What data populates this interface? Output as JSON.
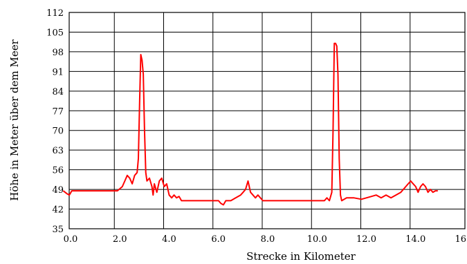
{
  "chart_data": {
    "type": "line",
    "xlabel": "Strecke in Kilometer",
    "ylabel": "Höhe in Meter über dem Meer",
    "xlim": [
      0.0,
      16.0
    ],
    "ylim": [
      35,
      112
    ],
    "x_ticks": [
      "0.0",
      "2.0",
      "4.0",
      "6.0",
      "8.0",
      "10.0",
      "12.0",
      "14.0",
      "16.0"
    ],
    "y_ticks": [
      "112",
      "105",
      "98",
      "91",
      "84",
      "77",
      "70",
      "63",
      "56",
      "49",
      "42",
      "35"
    ],
    "grid": true,
    "series_color": "#ff0000",
    "series": [
      {
        "points": [
          [
            -0.3,
            48.5
          ],
          [
            -0.15,
            47.5
          ],
          [
            -0.05,
            47
          ],
          [
            0.05,
            48.5
          ],
          [
            0.5,
            48.5
          ],
          [
            1.0,
            48.5
          ],
          [
            1.5,
            48.5
          ],
          [
            1.9,
            48.5
          ],
          [
            2.1,
            50
          ],
          [
            2.2,
            52
          ],
          [
            2.3,
            54
          ],
          [
            2.4,
            53
          ],
          [
            2.5,
            51
          ],
          [
            2.6,
            54
          ],
          [
            2.7,
            55
          ],
          [
            2.75,
            60
          ],
          [
            2.8,
            80
          ],
          [
            2.85,
            97
          ],
          [
            2.9,
            95
          ],
          [
            2.95,
            90
          ],
          [
            3.0,
            70
          ],
          [
            3.05,
            55
          ],
          [
            3.1,
            52
          ],
          [
            3.2,
            53
          ],
          [
            3.3,
            50
          ],
          [
            3.35,
            47
          ],
          [
            3.4,
            51
          ],
          [
            3.5,
            48
          ],
          [
            3.6,
            52
          ],
          [
            3.7,
            53
          ],
          [
            3.8,
            50
          ],
          [
            3.9,
            51
          ],
          [
            4.0,
            47
          ],
          [
            4.1,
            46
          ],
          [
            4.2,
            47
          ],
          [
            4.3,
            46
          ],
          [
            4.4,
            46.5
          ],
          [
            4.5,
            45
          ],
          [
            4.7,
            45
          ],
          [
            5.0,
            45
          ],
          [
            5.5,
            45
          ],
          [
            6.0,
            45
          ],
          [
            6.1,
            44
          ],
          [
            6.2,
            43.5
          ],
          [
            6.3,
            45
          ],
          [
            6.5,
            45
          ],
          [
            6.7,
            46
          ],
          [
            6.9,
            47
          ],
          [
            7.0,
            48
          ],
          [
            7.1,
            49
          ],
          [
            7.2,
            52
          ],
          [
            7.3,
            48
          ],
          [
            7.4,
            47
          ],
          [
            7.5,
            46
          ],
          [
            7.6,
            47
          ],
          [
            7.8,
            45
          ],
          [
            8.0,
            45
          ],
          [
            8.5,
            45
          ],
          [
            9.0,
            45
          ],
          [
            9.5,
            45
          ],
          [
            10.0,
            45
          ],
          [
            10.3,
            45
          ],
          [
            10.4,
            46
          ],
          [
            10.5,
            45
          ],
          [
            10.6,
            48
          ],
          [
            10.65,
            70
          ],
          [
            10.7,
            101
          ],
          [
            10.75,
            101
          ],
          [
            10.8,
            100
          ],
          [
            10.85,
            90
          ],
          [
            10.9,
            60
          ],
          [
            10.95,
            47
          ],
          [
            11.0,
            45
          ],
          [
            11.2,
            46
          ],
          [
            11.5,
            46
          ],
          [
            11.8,
            45.5
          ],
          [
            12.0,
            46
          ],
          [
            12.2,
            46.5
          ],
          [
            12.4,
            47
          ],
          [
            12.6,
            46
          ],
          [
            12.8,
            47
          ],
          [
            13.0,
            46
          ],
          [
            13.2,
            47
          ],
          [
            13.4,
            48
          ],
          [
            13.6,
            50
          ],
          [
            13.8,
            52
          ],
          [
            14.0,
            50
          ],
          [
            14.1,
            48
          ],
          [
            14.2,
            50
          ],
          [
            14.3,
            51
          ],
          [
            14.4,
            50
          ],
          [
            14.5,
            48
          ],
          [
            14.6,
            49
          ],
          [
            14.7,
            48
          ],
          [
            14.8,
            48.5
          ],
          [
            14.9,
            48.5
          ]
        ]
      }
    ]
  }
}
